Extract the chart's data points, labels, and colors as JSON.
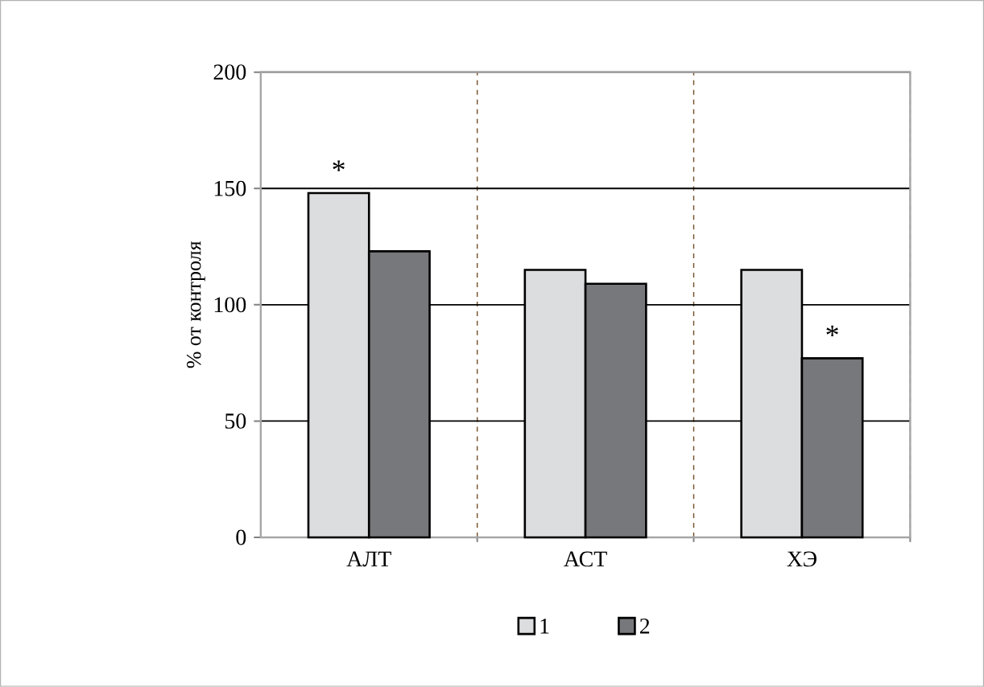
{
  "chart_data": {
    "type": "bar",
    "ylabel": "% от контроля",
    "categories": [
      "АЛТ",
      "АСТ",
      "ХЭ"
    ],
    "series": [
      {
        "name": "1",
        "color": "#dcdddf",
        "values": [
          148,
          115,
          115
        ]
      },
      {
        "name": "2",
        "color": "#77787b",
        "values": [
          123,
          109,
          77
        ]
      }
    ],
    "ylim": [
      0,
      200
    ],
    "yticks": [
      0,
      50,
      100,
      150,
      200
    ],
    "grid": true,
    "legend": "bottom",
    "annotations": [
      {
        "text": "*",
        "x": "АЛТ",
        "y": 148
      },
      {
        "text": "*",
        "x": "ХЭ",
        "y": 77
      }
    ]
  }
}
